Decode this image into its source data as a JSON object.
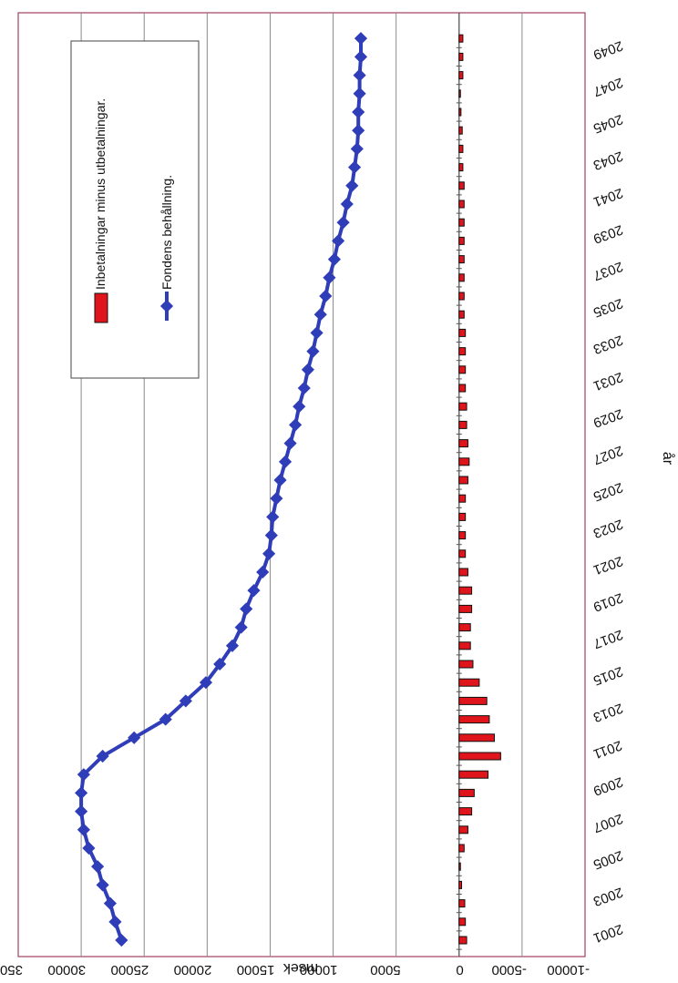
{
  "chart_data": {
    "type": "bar",
    "title": "",
    "xlabel": "år",
    "ylabel": "msek",
    "ylim": [
      -10000,
      35000
    ],
    "y_ticks": [
      "35000",
      "30000",
      "25000",
      "20000",
      "15000",
      "10000",
      "5000",
      "0",
      "-5000",
      "-10000"
    ],
    "grid": true,
    "legend_position": "top-right",
    "categories": [
      2001,
      2002,
      2003,
      2004,
      2005,
      2006,
      2007,
      2008,
      2009,
      2010,
      2011,
      2012,
      2013,
      2014,
      2015,
      2016,
      2017,
      2018,
      2019,
      2020,
      2021,
      2022,
      2023,
      2024,
      2025,
      2026,
      2027,
      2028,
      2029,
      2030,
      2031,
      2032,
      2033,
      2034,
      2035,
      2036,
      2037,
      2038,
      2039,
      2040,
      2041,
      2042,
      2043,
      2044,
      2045,
      2046,
      2047,
      2048,
      2049,
      2050
    ],
    "year_labels": [
      "2001",
      "2003",
      "2005",
      "2007",
      "2009",
      "2011",
      "2013",
      "2015",
      "2017",
      "2019",
      "2021",
      "2023",
      "2025",
      "2027",
      "2029",
      "2031",
      "2033",
      "2035",
      "2037",
      "2039",
      "2041",
      "2043",
      "2045",
      "2047",
      "2049"
    ],
    "series": [
      {
        "name": "Inbetalningar minus utbetalningar.",
        "type": "bar",
        "color": "#e0141b",
        "values": [
          -600,
          -500,
          -450,
          -200,
          -100,
          -400,
          -700,
          -1000,
          -1200,
          -2300,
          -3300,
          -2800,
          -2400,
          -2200,
          -1600,
          -1100,
          -900,
          -900,
          -1000,
          -1000,
          -700,
          -500,
          -500,
          -500,
          -500,
          -700,
          -800,
          -700,
          -600,
          -600,
          -500,
          -500,
          -500,
          -500,
          -400,
          -400,
          -400,
          -400,
          -400,
          -400,
          -400,
          -400,
          -300,
          -300,
          -250,
          -150,
          -100,
          -300,
          -300,
          -300
        ]
      },
      {
        "name": "Fondens behållning.",
        "type": "line",
        "color": "#2f3db8",
        "values": [
          26800,
          27300,
          27700,
          28300,
          28700,
          29400,
          29800,
          30000,
          30000,
          29800,
          28300,
          25800,
          23300,
          21700,
          20100,
          19000,
          18000,
          17300,
          16900,
          16300,
          15600,
          15100,
          14900,
          14800,
          14500,
          14200,
          13800,
          13400,
          13000,
          12700,
          12300,
          12000,
          11600,
          11300,
          11000,
          10600,
          10300,
          9900,
          9600,
          9200,
          8900,
          8500,
          8300,
          8100,
          8000,
          8000,
          7900,
          7900,
          7800,
          7800
        ]
      }
    ]
  }
}
